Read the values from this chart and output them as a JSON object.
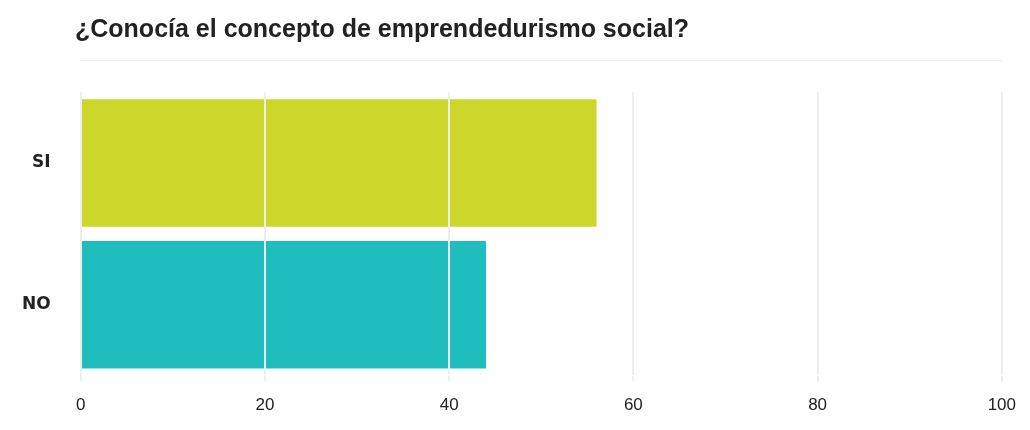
{
  "chart_data": {
    "type": "bar",
    "orientation": "horizontal",
    "title": "¿Conocía el concepto de emprendedurismo social?",
    "categories": [
      "SI",
      "NO"
    ],
    "values": [
      56,
      44
    ],
    "colors": [
      "#cdd62a",
      "#20bdbe"
    ],
    "xlim": [
      0,
      100
    ],
    "xticks": [
      0,
      20,
      40,
      60,
      80,
      100
    ],
    "grid": "x"
  }
}
